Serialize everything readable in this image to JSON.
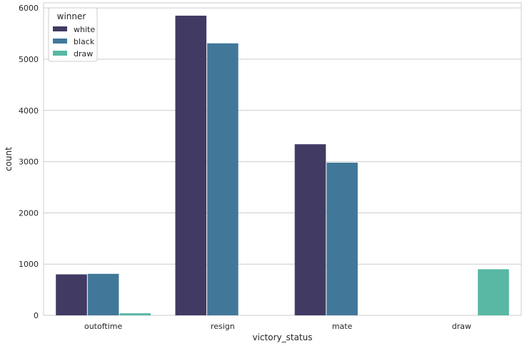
{
  "chart_data": {
    "type": "bar",
    "categories": [
      "outoftime",
      "resign",
      "mate",
      "draw"
    ],
    "series": [
      {
        "name": "white",
        "color": "#413b64",
        "values": [
          800,
          5850,
          3340,
          0
        ]
      },
      {
        "name": "black",
        "color": "#41789a",
        "values": [
          810,
          5310,
          2980,
          0
        ]
      },
      {
        "name": "draw",
        "color": "#58b8a4",
        "values": [
          40,
          0,
          0,
          900
        ]
      }
    ],
    "title": "",
    "xlabel": "victory_status",
    "ylabel": "count",
    "ylim": [
      0,
      6100
    ],
    "yticks": [
      0,
      1000,
      2000,
      3000,
      4000,
      5000,
      6000
    ],
    "grid": true,
    "legend": {
      "title": "winner",
      "placement": "top-left"
    }
  }
}
